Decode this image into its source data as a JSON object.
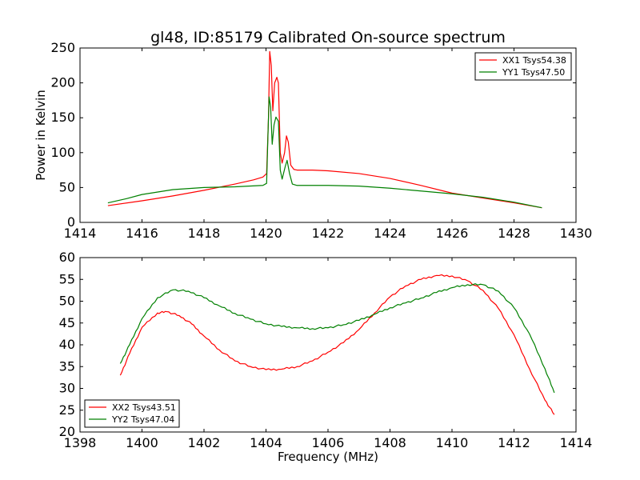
{
  "chart_data": [
    {
      "type": "line",
      "title": "gl48, ID:85179 Calibrated On-source spectrum",
      "xlabel": "",
      "ylabel": "Power in Kelvin",
      "xlim": [
        1414,
        1430
      ],
      "ylim": [
        0,
        250
      ],
      "xticks": [
        "1414",
        "1416",
        "1418",
        "1420",
        "1422",
        "1424",
        "1426",
        "1428",
        "1430"
      ],
      "yticks": [
        "0",
        "50",
        "100",
        "150",
        "200",
        "250"
      ],
      "grid": false,
      "legend_position": "top-right",
      "series": [
        {
          "name": "XX1 Tsys54.38",
          "color": "#ff0000",
          "points": [
            [
              1414.9,
              24
            ],
            [
              1416,
              31
            ],
            [
              1417,
              38
            ],
            [
              1418,
              46
            ],
            [
              1419,
              55
            ],
            [
              1419.6,
              61
            ],
            [
              1419.9,
              65
            ],
            [
              1420.02,
              70
            ],
            [
              1420.08,
              150
            ],
            [
              1420.12,
              245
            ],
            [
              1420.17,
              225
            ],
            [
              1420.22,
              160
            ],
            [
              1420.28,
              200
            ],
            [
              1420.35,
              208
            ],
            [
              1420.4,
              200
            ],
            [
              1420.46,
              100
            ],
            [
              1420.52,
              85
            ],
            [
              1420.6,
              100
            ],
            [
              1420.66,
              124
            ],
            [
              1420.72,
              115
            ],
            [
              1420.8,
              82
            ],
            [
              1420.9,
              76
            ],
            [
              1421,
              75
            ],
            [
              1421.5,
              75
            ],
            [
              1422,
              74
            ],
            [
              1423,
              70
            ],
            [
              1424,
              63
            ],
            [
              1425,
              53
            ],
            [
              1426,
              42
            ],
            [
              1427,
              35
            ],
            [
              1428,
              28
            ],
            [
              1428.9,
              21
            ]
          ]
        },
        {
          "name": "YY1 Tsys47.50",
          "color": "#008000",
          "points": [
            [
              1414.9,
              28
            ],
            [
              1415.5,
              34
            ],
            [
              1416,
              40
            ],
            [
              1417,
              47
            ],
            [
              1418,
              50
            ],
            [
              1419,
              51
            ],
            [
              1419.9,
              53
            ],
            [
              1420.02,
              56
            ],
            [
              1420.06,
              120
            ],
            [
              1420.1,
              180
            ],
            [
              1420.15,
              165
            ],
            [
              1420.2,
              112
            ],
            [
              1420.26,
              140
            ],
            [
              1420.32,
              151
            ],
            [
              1420.4,
              145
            ],
            [
              1420.46,
              75
            ],
            [
              1420.52,
              62
            ],
            [
              1420.62,
              80
            ],
            [
              1420.68,
              89
            ],
            [
              1420.76,
              70
            ],
            [
              1420.85,
              55
            ],
            [
              1421,
              53
            ],
            [
              1422,
              53
            ],
            [
              1423,
              52
            ],
            [
              1424,
              49
            ],
            [
              1425,
              45
            ],
            [
              1426,
              41
            ],
            [
              1427,
              36
            ],
            [
              1428,
              29
            ],
            [
              1428.9,
              21
            ]
          ]
        }
      ]
    },
    {
      "type": "line",
      "title": "",
      "xlabel": "Frequency (MHz)",
      "ylabel": "",
      "xlim": [
        1398,
        1414
      ],
      "ylim": [
        20,
        60
      ],
      "xticks": [
        "1398",
        "1400",
        "1402",
        "1404",
        "1406",
        "1408",
        "1410",
        "1412",
        "1414"
      ],
      "yticks": [
        "20",
        "25",
        "30",
        "35",
        "40",
        "45",
        "50",
        "55",
        "60"
      ],
      "grid": false,
      "legend_position": "bottom-left",
      "series": [
        {
          "name": "XX2 Tsys43.51",
          "color": "#ff0000",
          "points": [
            [
              1399.3,
              33
            ],
            [
              1399.6,
              38
            ],
            [
              1400,
              44
            ],
            [
              1400.5,
              47.3
            ],
            [
              1400.8,
              47.6
            ],
            [
              1401.2,
              46.7
            ],
            [
              1401.6,
              44.8
            ],
            [
              1402,
              42
            ],
            [
              1402.5,
              38.8
            ],
            [
              1403,
              36.3
            ],
            [
              1403.5,
              35
            ],
            [
              1404,
              34.3
            ],
            [
              1404.5,
              34.4
            ],
            [
              1405,
              35
            ],
            [
              1405.5,
              36.3
            ],
            [
              1406,
              38.3
            ],
            [
              1406.5,
              40.5
            ],
            [
              1407,
              43.5
            ],
            [
              1407.5,
              47.3
            ],
            [
              1408,
              51
            ],
            [
              1408.5,
              53.5
            ],
            [
              1409,
              55
            ],
            [
              1409.5,
              55.9
            ],
            [
              1410,
              55.8
            ],
            [
              1410.5,
              54.7
            ],
            [
              1411,
              52.5
            ],
            [
              1411.5,
              48.3
            ],
            [
              1412,
              42.3
            ],
            [
              1412.5,
              34.5
            ],
            [
              1413,
              27.3
            ],
            [
              1413.3,
              24
            ]
          ]
        },
        {
          "name": "YY2 Tsys47.04",
          "color": "#008000",
          "points": [
            [
              1399.3,
              35.7
            ],
            [
              1399.6,
              40
            ],
            [
              1400,
              46
            ],
            [
              1400.5,
              50.8
            ],
            [
              1401,
              52.6
            ],
            [
              1401.5,
              52.3
            ],
            [
              1402,
              50.8
            ],
            [
              1402.5,
              48.9
            ],
            [
              1403,
              47.2
            ],
            [
              1403.5,
              45.9
            ],
            [
              1404,
              44.8
            ],
            [
              1404.5,
              44.2
            ],
            [
              1405,
              43.9
            ],
            [
              1405.5,
              43.7
            ],
            [
              1406,
              43.9
            ],
            [
              1406.5,
              44.6
            ],
            [
              1407,
              45.6
            ],
            [
              1407.5,
              47
            ],
            [
              1408,
              48.5
            ],
            [
              1408.5,
              49.6
            ],
            [
              1409,
              50.7
            ],
            [
              1409.5,
              52
            ],
            [
              1410,
              53.1
            ],
            [
              1410.5,
              53.8
            ],
            [
              1411,
              53.8
            ],
            [
              1411.5,
              52.3
            ],
            [
              1412,
              48.5
            ],
            [
              1412.5,
              42.5
            ],
            [
              1413,
              34.5
            ],
            [
              1413.3,
              29
            ]
          ]
        }
      ]
    }
  ]
}
